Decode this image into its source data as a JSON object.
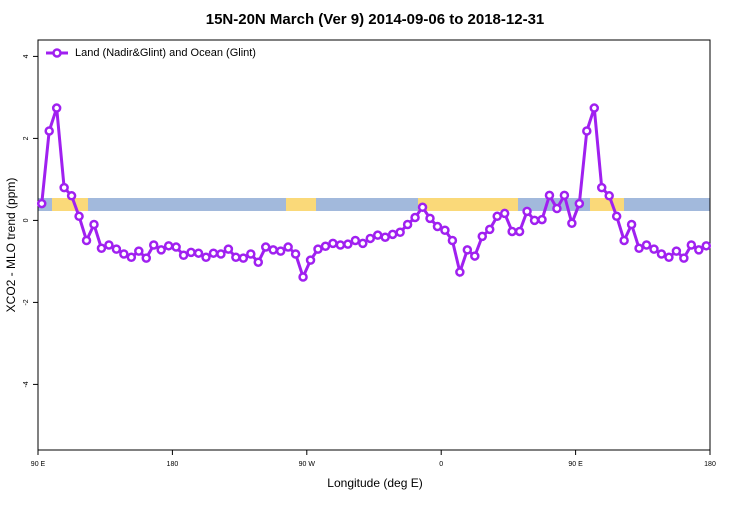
{
  "chart_data": {
    "type": "line",
    "title": "15N-20N March (Ver 9)   2014-09-06 to 2018-12-31",
    "xlabel": "Longitude (deg E)",
    "ylabel": "XCO2 - MLO trend (ppm)",
    "x": [
      92.5,
      97.5,
      102.5,
      107.5,
      112.5,
      117.5,
      122.5,
      127.5,
      132.5,
      137.5,
      142.5,
      147.5,
      152.5,
      157.5,
      162.5,
      167.5,
      172.5,
      177.5,
      182.5,
      187.5,
      192.5,
      197.5,
      202.5,
      207.5,
      212.5,
      217.5,
      222.5,
      227.5,
      232.5,
      237.5,
      242.5,
      247.5,
      252.5,
      257.5,
      262.5,
      267.5,
      272.5,
      277.5,
      282.5,
      287.5,
      292.5,
      297.5,
      302.5,
      307.5,
      312.5,
      317.5,
      322.5,
      327.5,
      332.5,
      337.5,
      342.5,
      347.5,
      352.5,
      357.5,
      362.5,
      367.5,
      372.5,
      377.5,
      382.5,
      387.5,
      392.5,
      397.5,
      402.5,
      407.5,
      412.5,
      417.5,
      422.5,
      427.5,
      432.5,
      437.5,
      442.5,
      447.5,
      452.5,
      457.5,
      462.5,
      467.5,
      472.5,
      477.5,
      482.5,
      487.5,
      492.5,
      497.5,
      502.5,
      507.5,
      512.5,
      517.5,
      522.5,
      527.5,
      532.5,
      537.5
    ],
    "series": [
      {
        "name": "Land (Nadir&Glint) and Ocean (Glint)",
        "color": "#a020f0",
        "values": [
          0.41,
          2.18,
          2.74,
          0.8,
          0.6,
          0.1,
          -0.49,
          -0.1,
          -0.68,
          -0.6,
          -0.7,
          -0.82,
          -0.9,
          -0.75,
          -0.92,
          -0.6,
          -0.72,
          -0.62,
          -0.65,
          -0.85,
          -0.78,
          -0.8,
          -0.9,
          -0.8,
          -0.82,
          -0.7,
          -0.9,
          -0.92,
          -0.82,
          -1.02,
          -0.65,
          -0.72,
          -0.75,
          -0.65,
          -0.82,
          -1.38,
          -0.97,
          -0.7,
          -0.63,
          -0.56,
          -0.6,
          -0.58,
          -0.49,
          -0.56,
          -0.44,
          -0.36,
          -0.41,
          -0.34,
          -0.29,
          -0.1,
          0.07,
          0.32,
          0.05,
          -0.15,
          -0.24,
          -0.49,
          -1.26,
          -0.72,
          -0.87,
          -0.39,
          -0.22,
          0.1,
          0.17,
          -0.27,
          -0.27,
          0.22,
          0,
          0.02,
          0.61,
          0.29,
          0.61,
          -0.07,
          0.41,
          2.18,
          2.74,
          0.8,
          0.6,
          0.1,
          -0.49,
          -0.1,
          -0.68,
          -0.6,
          -0.7,
          -0.82,
          -0.9,
          -0.75,
          -0.92,
          -0.6,
          -0.72,
          -0.62
        ]
      }
    ],
    "xlim": [
      90,
      540
    ],
    "xticks": [
      {
        "value": 90,
        "label": "90 E"
      },
      180,
      {
        "value": 270,
        "label": "90 W"
      },
      {
        "value": 360,
        "label": "0"
      },
      {
        "value": 450,
        "label": "90 E"
      },
      {
        "value": 540,
        "label": "180"
      }
    ],
    "ylim": [
      -5.6,
      4.4
    ],
    "yticks": [
      -4,
      -2,
      0,
      2,
      4
    ],
    "legend": "top-left"
  }
}
